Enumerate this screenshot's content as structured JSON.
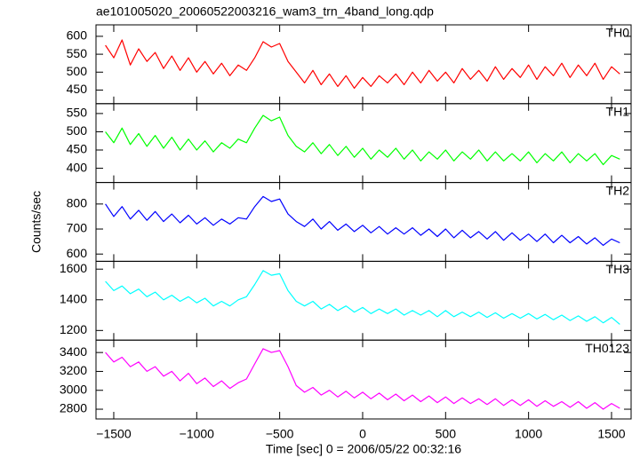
{
  "chart_data": {
    "type": "line",
    "title": "ae101005020_20060522003216_wam3_trn_4band_long.qdp",
    "x_label": "Time [sec] 0 = 2006/05/22 00:32:16",
    "y_label": "Counts/sec",
    "xlim": [
      -1607,
      1618
    ],
    "xticks": [
      {
        "value": -1500,
        "label": "−1500"
      },
      {
        "value": -1000,
        "label": "−1000"
      },
      {
        "value": -500,
        "label": "−500"
      },
      0,
      500,
      1000,
      1500
    ],
    "x": [
      -1550,
      -1500,
      -1450,
      -1400,
      -1350,
      -1300,
      -1250,
      -1200,
      -1150,
      -1100,
      -1050,
      -1000,
      -950,
      -900,
      -850,
      -800,
      -750,
      -700,
      -650,
      -600,
      -550,
      -500,
      -450,
      -400,
      -350,
      -300,
      -250,
      -200,
      -150,
      -100,
      -50,
      0,
      50,
      100,
      150,
      200,
      250,
      300,
      350,
      400,
      450,
      500,
      550,
      600,
      650,
      700,
      750,
      800,
      850,
      900,
      950,
      1000,
      1050,
      1100,
      1150,
      1200,
      1250,
      1300,
      1350,
      1400,
      1450,
      1500,
      1550
    ],
    "series": [
      {
        "name": "TH0",
        "color": "#ff0000",
        "ylim": [
          412,
          632
        ],
        "yticks": [
          450,
          500,
          550,
          600
        ],
        "values": [
          575,
          540,
          590,
          520,
          565,
          530,
          555,
          510,
          545,
          505,
          540,
          500,
          530,
          495,
          525,
          490,
          520,
          505,
          540,
          585,
          570,
          580,
          530,
          500,
          470,
          505,
          465,
          495,
          460,
          490,
          455,
          485,
          460,
          490,
          470,
          495,
          465,
          500,
          470,
          505,
          475,
          500,
          470,
          510,
          480,
          505,
          475,
          515,
          480,
          510,
          485,
          520,
          480,
          515,
          490,
          525,
          485,
          520,
          490,
          525,
          480,
          515,
          495
        ]
      },
      {
        "name": "TH1",
        "color": "#00ff00",
        "ylim": [
          361,
          577
        ],
        "yticks": [
          400,
          450,
          500,
          550
        ],
        "values": [
          500,
          470,
          510,
          465,
          495,
          460,
          490,
          455,
          485,
          450,
          480,
          450,
          475,
          445,
          470,
          455,
          480,
          470,
          510,
          545,
          530,
          540,
          490,
          460,
          445,
          470,
          440,
          465,
          435,
          460,
          430,
          455,
          425,
          450,
          430,
          455,
          425,
          450,
          420,
          445,
          425,
          450,
          420,
          445,
          425,
          450,
          420,
          445,
          420,
          440,
          420,
          445,
          415,
          440,
          420,
          445,
          415,
          440,
          420,
          440,
          410,
          435,
          425
        ]
      },
      {
        "name": "TH2",
        "color": "#0000ff",
        "ylim": [
          571,
          886
        ],
        "yticks": [
          600,
          700,
          800
        ],
        "values": [
          800,
          750,
          790,
          740,
          775,
          735,
          770,
          730,
          760,
          725,
          755,
          720,
          745,
          715,
          740,
          720,
          745,
          740,
          790,
          830,
          810,
          820,
          760,
          730,
          710,
          740,
          700,
          730,
          695,
          720,
          690,
          715,
          685,
          710,
          680,
          705,
          680,
          705,
          675,
          700,
          670,
          700,
          665,
          695,
          665,
          690,
          660,
          690,
          655,
          685,
          655,
          680,
          650,
          680,
          645,
          675,
          645,
          670,
          640,
          665,
          635,
          660,
          645
        ]
      },
      {
        "name": "TH3",
        "color": "#00ffff",
        "ylim": [
          1137,
          1651
        ],
        "yticks": [
          1200,
          1400,
          1600
        ],
        "values": [
          1520,
          1460,
          1490,
          1440,
          1470,
          1420,
          1450,
          1400,
          1430,
          1390,
          1420,
          1380,
          1410,
          1360,
          1390,
          1360,
          1400,
          1420,
          1500,
          1590,
          1560,
          1570,
          1460,
          1390,
          1360,
          1390,
          1340,
          1370,
          1330,
          1360,
          1320,
          1350,
          1310,
          1340,
          1310,
          1340,
          1300,
          1330,
          1300,
          1330,
          1290,
          1330,
          1290,
          1320,
          1290,
          1320,
          1285,
          1315,
          1280,
          1310,
          1280,
          1310,
          1275,
          1305,
          1270,
          1300,
          1265,
          1295,
          1260,
          1290,
          1250,
          1285,
          1240
        ]
      },
      {
        "name": "TH0123",
        "color": "#ff00ff",
        "ylim": [
          2697,
          3531
        ],
        "yticks": [
          2800,
          3000,
          3200,
          3400
        ],
        "values": [
          3400,
          3300,
          3350,
          3250,
          3300,
          3200,
          3250,
          3150,
          3200,
          3100,
          3180,
          3070,
          3130,
          3040,
          3100,
          3020,
          3080,
          3120,
          3280,
          3440,
          3400,
          3420,
          3250,
          3050,
          2980,
          3030,
          2950,
          3000,
          2930,
          2990,
          2920,
          2980,
          2910,
          2970,
          2900,
          2960,
          2890,
          2950,
          2880,
          2940,
          2870,
          2930,
          2860,
          2920,
          2860,
          2910,
          2850,
          2910,
          2840,
          2900,
          2840,
          2900,
          2830,
          2890,
          2830,
          2880,
          2820,
          2880,
          2810,
          2870,
          2800,
          2860,
          2810
        ]
      }
    ]
  }
}
